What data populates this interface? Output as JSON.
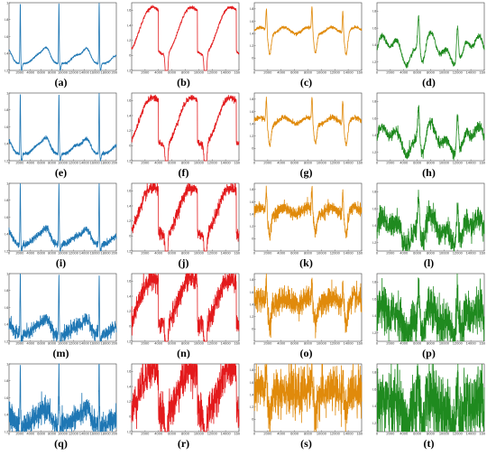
{
  "figure": {
    "captions": [
      "(a)",
      "(b)",
      "(c)",
      "(d)",
      "(e)",
      "(f)",
      "(g)",
      "(h)",
      "(i)",
      "(j)",
      "(k)",
      "(l)",
      "(m)",
      "(n)",
      "(o)",
      "(p)",
      "(q)",
      "(r)",
      "(s)",
      "(t)"
    ]
  },
  "chart_data": [
    {
      "panel": "(a)",
      "type": "line",
      "color": "#1f77b4",
      "signal": "ecg",
      "noise": 0.005,
      "xlim": [
        0,
        20000
      ],
      "ylim": [
        0.2,
        1.0
      ],
      "x_ticks": [
        0,
        2000,
        4000,
        6000,
        8000,
        10000,
        12000,
        14000,
        16000,
        18000,
        20000
      ],
      "y_ticks": [
        0.2,
        0.4,
        0.6,
        0.8,
        1.0
      ],
      "peaks_x": [
        2100,
        9300,
        16800
      ]
    },
    {
      "panel": "(b)",
      "type": "line",
      "color": "#e31a1c",
      "signal": "sawtooth",
      "noise": 0.01,
      "xlim": [
        0,
        16000
      ],
      "ylim": [
        -0.2,
        0.7
      ],
      "x_ticks": [
        0,
        2000,
        4000,
        6000,
        8000,
        10000,
        12000,
        14000,
        16000
      ],
      "y_ticks": [
        -0.2,
        0,
        0.2,
        0.4,
        0.6
      ],
      "dips_x": [
        5200,
        11000
      ]
    },
    {
      "panel": "(c)",
      "type": "line",
      "color": "#e08a0b",
      "signal": "spiky",
      "noise": 0.012,
      "xlim": [
        0,
        16000
      ],
      "ylim": [
        -0.2,
        0.9
      ],
      "x_ticks": [
        0,
        2000,
        4000,
        6000,
        8000,
        10000,
        12000,
        14000,
        16000
      ],
      "y_ticks": [
        0,
        0.2,
        0.4,
        0.6,
        0.8
      ],
      "peaks_x": [
        1800,
        8600,
        13200
      ]
    },
    {
      "panel": "(d)",
      "type": "line",
      "color": "#1f8a1f",
      "signal": "wavy",
      "noise": 0.015,
      "xlim": [
        0,
        16000
      ],
      "ylim": [
        0.1,
        0.9
      ],
      "x_ticks": [
        0,
        2000,
        4000,
        6000,
        8000,
        10000,
        12000,
        14000,
        16000
      ],
      "y_ticks": [
        0.2,
        0.4,
        0.6,
        0.8
      ],
      "peaks_x": [
        6200,
        12000
      ]
    },
    {
      "panel": "(e)",
      "type": "line",
      "color": "#1f77b4",
      "signal": "ecg",
      "noise": 0.01,
      "xlim": [
        0,
        20000
      ],
      "ylim": [
        0.2,
        1.0
      ],
      "x_ticks": [
        0,
        2000,
        4000,
        6000,
        8000,
        10000,
        12000,
        14000,
        16000,
        18000,
        20000
      ],
      "y_ticks": [
        0.2,
        0.4,
        0.6,
        0.8,
        1.0
      ],
      "peaks_x": [
        2100,
        9300,
        16800
      ]
    },
    {
      "panel": "(f)",
      "type": "line",
      "color": "#e31a1c",
      "signal": "sawtooth",
      "noise": 0.02,
      "xlim": [
        0,
        16000
      ],
      "ylim": [
        -0.2,
        0.7
      ],
      "x_ticks": [
        0,
        2000,
        4000,
        6000,
        8000,
        10000,
        12000,
        14000,
        16000
      ],
      "y_ticks": [
        -0.2,
        0,
        0.2,
        0.4,
        0.6
      ],
      "dips_x": [
        5200,
        11000
      ]
    },
    {
      "panel": "(g)",
      "type": "line",
      "color": "#e08a0b",
      "signal": "spiky",
      "noise": 0.02,
      "xlim": [
        0,
        16000
      ],
      "ylim": [
        -0.2,
        0.9
      ],
      "x_ticks": [
        0,
        2000,
        4000,
        6000,
        8000,
        10000,
        12000,
        14000,
        16000
      ],
      "y_ticks": [
        0,
        0.2,
        0.4,
        0.6,
        0.8
      ],
      "peaks_x": [
        1800,
        8600,
        13200
      ]
    },
    {
      "panel": "(h)",
      "type": "line",
      "color": "#1f8a1f",
      "signal": "wavy",
      "noise": 0.03,
      "xlim": [
        0,
        16000
      ],
      "ylim": [
        0.1,
        0.9
      ],
      "x_ticks": [
        0,
        2000,
        4000,
        6000,
        8000,
        10000,
        12000,
        14000,
        16000
      ],
      "y_ticks": [
        0.2,
        0.4,
        0.6,
        0.8
      ],
      "peaks_x": [
        6200,
        12000
      ]
    },
    {
      "panel": "(i)",
      "type": "line",
      "color": "#1f77b4",
      "signal": "ecg",
      "noise": 0.02,
      "xlim": [
        0,
        20000
      ],
      "ylim": [
        0.2,
        1.0
      ],
      "x_ticks": [
        0,
        2000,
        4000,
        6000,
        8000,
        10000,
        12000,
        14000,
        16000,
        18000,
        20000
      ],
      "y_ticks": [
        0.2,
        0.4,
        0.6,
        0.8,
        1.0
      ],
      "peaks_x": [
        2100,
        9300,
        16800
      ]
    },
    {
      "panel": "(j)",
      "type": "line",
      "color": "#e31a1c",
      "signal": "sawtooth",
      "noise": 0.04,
      "xlim": [
        0,
        16000
      ],
      "ylim": [
        -0.2,
        0.7
      ],
      "x_ticks": [
        0,
        2000,
        4000,
        6000,
        8000,
        10000,
        12000,
        14000,
        16000
      ],
      "y_ticks": [
        -0.2,
        0,
        0.2,
        0.4,
        0.6
      ],
      "dips_x": [
        5200,
        11000
      ]
    },
    {
      "panel": "(k)",
      "type": "line",
      "color": "#e08a0b",
      "signal": "spiky",
      "noise": 0.05,
      "xlim": [
        0,
        16000
      ],
      "ylim": [
        -0.2,
        0.9
      ],
      "x_ticks": [
        0,
        2000,
        4000,
        6000,
        8000,
        10000,
        12000,
        14000,
        16000
      ],
      "y_ticks": [
        0,
        0.2,
        0.4,
        0.6,
        0.8
      ],
      "peaks_x": [
        1800,
        8600,
        13200
      ]
    },
    {
      "panel": "(l)",
      "type": "line",
      "color": "#1f8a1f",
      "signal": "wavy",
      "noise": 0.07,
      "xlim": [
        0,
        16000
      ],
      "ylim": [
        0.1,
        0.9
      ],
      "x_ticks": [
        0,
        2000,
        4000,
        6000,
        8000,
        10000,
        12000,
        14000,
        16000
      ],
      "y_ticks": [
        0.2,
        0.4,
        0.6,
        0.8
      ],
      "peaks_x": [
        6200,
        12000
      ]
    },
    {
      "panel": "(m)",
      "type": "line",
      "color": "#1f77b4",
      "signal": "ecg",
      "noise": 0.04,
      "xlim": [
        0,
        20000
      ],
      "ylim": [
        0.2,
        1.0
      ],
      "x_ticks": [
        0,
        2000,
        4000,
        6000,
        8000,
        10000,
        12000,
        14000,
        16000,
        18000,
        20000
      ],
      "y_ticks": [
        0.2,
        0.4,
        0.6,
        0.8,
        1.0
      ],
      "peaks_x": [
        2100,
        9300,
        16800
      ]
    },
    {
      "panel": "(n)",
      "type": "line",
      "color": "#e31a1c",
      "signal": "sawtooth",
      "noise": 0.07,
      "xlim": [
        0,
        16000
      ],
      "ylim": [
        -0.2,
        0.7
      ],
      "x_ticks": [
        0,
        2000,
        4000,
        6000,
        8000,
        10000,
        12000,
        14000,
        16000
      ],
      "y_ticks": [
        -0.2,
        0,
        0.2,
        0.4,
        0.6
      ],
      "dips_x": [
        5200,
        11000
      ]
    },
    {
      "panel": "(o)",
      "type": "line",
      "color": "#e08a0b",
      "signal": "spiky",
      "noise": 0.1,
      "xlim": [
        0,
        16000
      ],
      "ylim": [
        -0.2,
        0.9
      ],
      "x_ticks": [
        0,
        2000,
        4000,
        6000,
        8000,
        10000,
        12000,
        14000,
        16000
      ],
      "y_ticks": [
        0,
        0.2,
        0.4,
        0.6,
        0.8
      ],
      "peaks_x": [
        1800,
        8600,
        13200
      ]
    },
    {
      "panel": "(p)",
      "type": "line",
      "color": "#1f8a1f",
      "signal": "wavy",
      "noise": 0.13,
      "xlim": [
        0,
        16000
      ],
      "ylim": [
        0.1,
        0.9
      ],
      "x_ticks": [
        0,
        2000,
        4000,
        6000,
        8000,
        10000,
        12000,
        14000,
        16000
      ],
      "y_ticks": [
        0.2,
        0.4,
        0.6,
        0.8
      ],
      "peaks_x": [
        6200,
        12000
      ]
    },
    {
      "panel": "(q)",
      "type": "line",
      "color": "#1f77b4",
      "signal": "ecg",
      "noise": 0.07,
      "xlim": [
        0,
        20000
      ],
      "ylim": [
        0.2,
        1.0
      ],
      "x_ticks": [
        0,
        2000,
        4000,
        6000,
        8000,
        10000,
        12000,
        14000,
        16000,
        18000,
        20000
      ],
      "y_ticks": [
        0.2,
        0.4,
        0.6,
        0.8,
        1.0
      ],
      "peaks_x": [
        2100,
        9300,
        16800
      ]
    },
    {
      "panel": "(r)",
      "type": "line",
      "color": "#e31a1c",
      "signal": "sawtooth",
      "noise": 0.13,
      "xlim": [
        0,
        16000
      ],
      "ylim": [
        -0.2,
        0.7
      ],
      "x_ticks": [
        0,
        2000,
        4000,
        6000,
        8000,
        10000,
        12000,
        14000,
        16000
      ],
      "y_ticks": [
        -0.2,
        0,
        0.2,
        0.4,
        0.6
      ],
      "dips_x": [
        5200,
        11000
      ]
    },
    {
      "panel": "(s)",
      "type": "line",
      "color": "#e08a0b",
      "signal": "spiky",
      "noise": 0.18,
      "xlim": [
        0,
        16000
      ],
      "ylim": [
        -0.2,
        0.9
      ],
      "x_ticks": [
        0,
        2000,
        4000,
        6000,
        8000,
        10000,
        12000,
        14000,
        16000
      ],
      "y_ticks": [
        0,
        0.2,
        0.4,
        0.6,
        0.8
      ],
      "peaks_x": [
        1800,
        8600,
        13200
      ]
    },
    {
      "panel": "(t)",
      "type": "line",
      "color": "#1f8a1f",
      "signal": "wavy",
      "noise": 0.2,
      "xlim": [
        0,
        16000
      ],
      "ylim": [
        0.1,
        0.9
      ],
      "x_ticks": [
        0,
        2000,
        4000,
        6000,
        8000,
        10000,
        12000,
        14000,
        16000
      ],
      "y_ticks": [
        0.2,
        0.4,
        0.6,
        0.8
      ],
      "peaks_x": [
        6200,
        12000
      ]
    }
  ]
}
